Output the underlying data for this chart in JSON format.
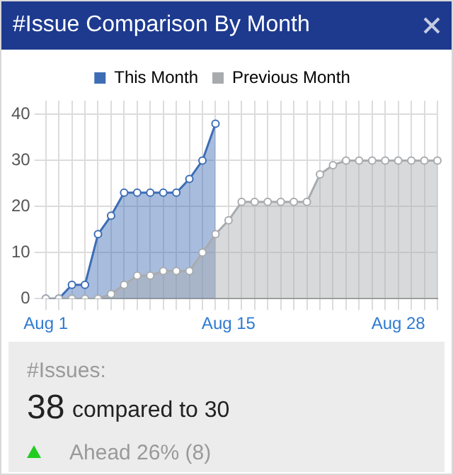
{
  "chart_data": {
    "type": "area",
    "title": "#Issue Comparison By Month",
    "categories": [
      "Aug 1",
      null,
      null,
      null,
      null,
      null,
      null,
      null,
      null,
      null,
      null,
      null,
      null,
      null,
      "Aug 15",
      null,
      null,
      null,
      null,
      null,
      null,
      null,
      null,
      null,
      null,
      null,
      null,
      "Aug 28",
      null,
      null,
      null
    ],
    "series": [
      {
        "name": "This Month",
        "color": "#3d6db5",
        "values": [
          0,
          0,
          3,
          3,
          14,
          18,
          23,
          23,
          23,
          23,
          23,
          26,
          30,
          38,
          null,
          null,
          null,
          null,
          null,
          null,
          null,
          null,
          null,
          null,
          null,
          null,
          null,
          null,
          null,
          null,
          null
        ]
      },
      {
        "name": "Previous Month",
        "color": "#a8abae",
        "values": [
          0,
          0,
          0,
          0,
          0,
          1,
          3,
          5,
          5,
          6,
          6,
          6,
          10,
          14,
          17,
          21,
          21,
          21,
          21,
          21,
          21,
          27,
          29,
          30,
          30,
          30,
          30,
          30,
          30,
          30,
          30
        ]
      }
    ],
    "ylim": [
      0,
      43
    ],
    "yticks": [
      0,
      10,
      20,
      30,
      40
    ],
    "grid": true,
    "legend": "top",
    "marker": "circle",
    "annotations": [
      "#Issues:",
      "38",
      "compared to 30",
      "Ahead 26% (8)"
    ]
  }
}
